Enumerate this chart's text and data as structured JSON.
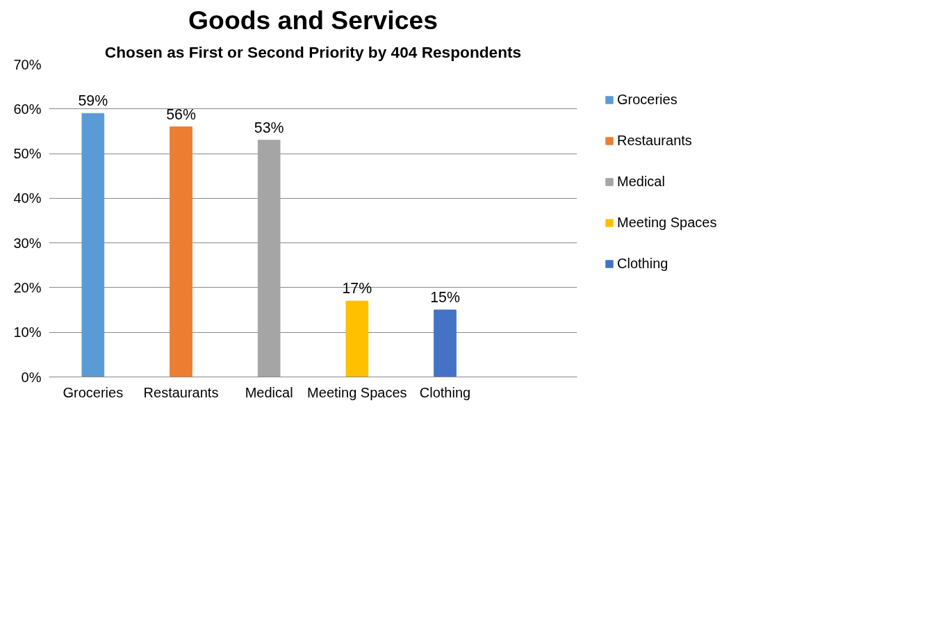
{
  "chart_data": {
    "type": "bar",
    "title": "Goods and Services",
    "subtitle": "Chosen as First or Second Priority by 404 Respondents",
    "categories": [
      "Groceries",
      "Restaurants",
      "Medical",
      "Meeting Spaces",
      "Clothing"
    ],
    "series": [
      {
        "name": "Groceries",
        "color": "#5b9bd5",
        "values": [
          59,
          null,
          null,
          null,
          null
        ],
        "value_labels": [
          "59%",
          null,
          null,
          null,
          null
        ]
      },
      {
        "name": "Restaurants",
        "color": "#ed7d31",
        "values": [
          null,
          56,
          null,
          null,
          null
        ],
        "value_labels": [
          null,
          "56%",
          null,
          null,
          null
        ]
      },
      {
        "name": "Medical",
        "color": "#a5a5a5",
        "values": [
          null,
          null,
          53,
          null,
          null
        ],
        "value_labels": [
          null,
          null,
          "53%",
          null,
          null
        ]
      },
      {
        "name": "Meeting Spaces",
        "color": "#ffc000",
        "values": [
          null,
          null,
          null,
          17,
          null
        ],
        "value_labels": [
          null,
          null,
          null,
          "17%",
          null
        ]
      },
      {
        "name": "Clothing",
        "color": "#4472c4",
        "values": [
          null,
          null,
          null,
          null,
          15
        ],
        "value_labels": [
          null,
          null,
          null,
          null,
          "15%"
        ]
      }
    ],
    "ylim": [
      0,
      70
    ],
    "yticks": [
      {
        "value": 0,
        "label": "0%"
      },
      {
        "value": 10,
        "label": "10%"
      },
      {
        "value": 20,
        "label": "20%"
      },
      {
        "value": 30,
        "label": "30%"
      },
      {
        "value": 40,
        "label": "40%"
      },
      {
        "value": 50,
        "label": "50%"
      },
      {
        "value": 60,
        "label": "60%"
      },
      {
        "value": 70,
        "label": "70%"
      }
    ],
    "grid": "y",
    "legend": "right"
  }
}
